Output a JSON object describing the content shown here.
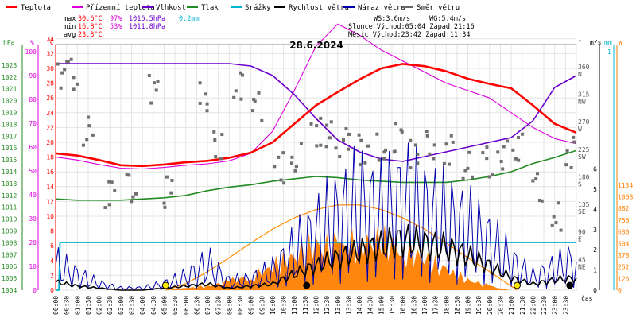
{
  "chart_data": {
    "type": "line",
    "title": "28.6.2024",
    "xlabel": "čas",
    "x_ticks": [
      "00:00",
      "00:30",
      "01:00",
      "01:30",
      "02:00",
      "02:30",
      "03:00",
      "03:30",
      "04:00",
      "04:30",
      "05:00",
      "05:30",
      "06:00",
      "06:30",
      "07:00",
      "07:30",
      "08:00",
      "08:30",
      "09:00",
      "09:30",
      "10:00",
      "10:30",
      "11:00",
      "11:30",
      "12:00",
      "12:30",
      "13:00",
      "13:30",
      "14:00",
      "14:30",
      "15:00",
      "15:30",
      "16:00",
      "16:30",
      "17:00",
      "17:30",
      "18:00",
      "18:30",
      "19:00",
      "19:30",
      "20:00",
      "20:30",
      "21:00",
      "21:30",
      "22:00",
      "22:30",
      "23:00",
      "23:30"
    ],
    "axes": {
      "hpa": {
        "label": "hPa",
        "ticks": [
          "1004",
          "1005",
          "1006",
          "1007",
          "1008",
          "1009",
          "1010",
          "1011",
          "1012",
          "1013",
          "1014",
          "1015",
          "1016",
          "1017",
          "1018",
          "1019",
          "1020",
          "1021",
          "1022",
          "1023"
        ]
      },
      "percent": {
        "label": "%",
        "ticks": [
          "0",
          "10",
          "20",
          "30",
          "40",
          "50",
          "60",
          "70",
          "80",
          "90",
          "100"
        ]
      },
      "temperature": {
        "label": "°C",
        "ticks": [
          "0",
          "2",
          "4",
          "6",
          "8",
          "10",
          "12",
          "14",
          "16",
          "18",
          "20",
          "22",
          "24",
          "26",
          "28",
          "30",
          "32",
          "34"
        ]
      },
      "direction": {
        "label": "°",
        "ticks": [
          {
            "deg": "45",
            "dir": "NE"
          },
          {
            "deg": "90",
            "dir": "E"
          },
          {
            "deg": "135",
            "dir": "SE"
          },
          {
            "deg": "180",
            "dir": "S"
          },
          {
            "deg": "225",
            "dir": "SW"
          },
          {
            "deg": "270",
            "dir": "W"
          },
          {
            "deg": "315",
            "dir": "NW"
          },
          {
            "deg": "360",
            "dir": "N"
          }
        ]
      },
      "wind": {
        "label": "m/s",
        "ticks": [
          "0",
          "1",
          "2",
          "3",
          "4",
          "5",
          "6"
        ]
      },
      "rain": {
        "label": "mm",
        "ticks": [
          "1"
        ]
      },
      "solar": {
        "label": "W",
        "ticks": [
          "0",
          "126",
          "252",
          "378",
          "504",
          "630",
          "756",
          "882",
          "1008",
          "1134"
        ]
      }
    },
    "legend": [
      {
        "name": "Teplota",
        "color": "#ff0000"
      },
      {
        "name": "Přízemní teplota",
        "color": "#dd00dd"
      },
      {
        "name": "Vlhkost",
        "color": "#6a00cc"
      },
      {
        "name": "Tlak",
        "color": "#228b22"
      },
      {
        "name": "Srážky",
        "color": "#00b4d0"
      },
      {
        "name": "Rychlost větru",
        "color": "#000000"
      },
      {
        "name": "Náraz větru",
        "color": "#0000aa"
      },
      {
        "name": "Směr větru",
        "color": "#666666"
      }
    ],
    "summary": {
      "max_label": "max",
      "max_temp": "30.6°C",
      "max_hum": "97%",
      "max_press": "1016.5hPa",
      "rain": "0.2mm",
      "min_label": "min",
      "min_temp": "16.8°C",
      "min_hum": "53%",
      "min_press": "1011.8hPa",
      "avg_label": "avg",
      "avg_temp": "23.3°C",
      "ws": "WS:3.6m/s",
      "wg": "WG:5.4m/s",
      "sun": "Slunce Východ:05:04  Západ:21:16",
      "moon": "Měsíc  Východ:23:42  Západ:11:34"
    },
    "series": [
      {
        "name": "Teplota",
        "axis": "temperature",
        "x": [
          0,
          1,
          2,
          3,
          4,
          5,
          6,
          7,
          8,
          9,
          10,
          11,
          12,
          13,
          14,
          15,
          16,
          17,
          18,
          19,
          20,
          21,
          22,
          23,
          24
        ],
        "values": [
          18.5,
          18.2,
          17.6,
          16.9,
          16.8,
          17.0,
          17.3,
          17.5,
          17.9,
          18.6,
          20.0,
          22.5,
          25.0,
          26.8,
          28.5,
          30.0,
          30.6,
          30.3,
          29.6,
          28.6,
          27.9,
          27.3,
          25.0,
          22.5,
          21.3
        ]
      },
      {
        "name": "Přízemní teplota",
        "axis": "temperature",
        "x": [
          0,
          1,
          2,
          3,
          4,
          5,
          6,
          7,
          8,
          9,
          10,
          11,
          12,
          13,
          14,
          15,
          16,
          17,
          18,
          19,
          20,
          21,
          22,
          23,
          24
        ],
        "values": [
          18.0,
          17.6,
          17.0,
          16.5,
          16.4,
          16.6,
          16.9,
          17.1,
          17.5,
          18.5,
          21.5,
          27.0,
          33.0,
          36.0,
          34.5,
          32.5,
          31.0,
          29.5,
          28.0,
          27.0,
          26.0,
          24.0,
          22.0,
          20.5,
          19.8
        ]
      },
      {
        "name": "Vlhkost",
        "axis": "percent",
        "x": [
          0,
          1,
          2,
          3,
          4,
          5,
          6,
          7,
          8,
          9,
          10,
          11,
          12,
          13,
          14,
          15,
          16,
          17,
          18,
          19,
          20,
          21,
          22,
          23,
          24
        ],
        "values": [
          95,
          95,
          95,
          95,
          95,
          95,
          95,
          95,
          95,
          94,
          90,
          82,
          72,
          63,
          58,
          55,
          54,
          56,
          58,
          60,
          62,
          64,
          71,
          85,
          90
        ]
      },
      {
        "name": "Tlak",
        "axis": "hpa",
        "x": [
          0,
          1,
          2,
          3,
          4,
          5,
          6,
          7,
          8,
          9,
          10,
          11,
          12,
          13,
          14,
          15,
          16,
          17,
          18,
          19,
          20,
          21,
          22,
          23,
          24
        ],
        "values": [
          1011.7,
          1011.6,
          1011.6,
          1011.6,
          1011.7,
          1011.8,
          1012.0,
          1012.4,
          1012.7,
          1012.9,
          1013.2,
          1013.4,
          1013.6,
          1013.5,
          1013.3,
          1013.2,
          1013.1,
          1013.1,
          1013.1,
          1013.3,
          1013.6,
          1014.0,
          1014.7,
          1015.2,
          1015.8
        ]
      },
      {
        "name": "Srážky",
        "axis": "rain",
        "x": [
          0,
          0.15,
          0.2,
          24
        ],
        "values": [
          0,
          0,
          0.2,
          0.2
        ]
      },
      {
        "name": "Rychlost větru",
        "axis": "wind",
        "x": [
          0,
          1,
          2,
          3,
          4,
          5,
          6,
          7,
          8,
          9,
          10,
          11,
          12,
          13,
          14,
          15,
          16,
          17,
          18,
          19,
          20,
          21,
          22,
          23,
          24
        ],
        "values": [
          0.4,
          0.2,
          0.1,
          0.0,
          0.0,
          0.1,
          0.2,
          0.3,
          0.1,
          0.2,
          0.3,
          0.8,
          1.2,
          1.6,
          1.9,
          2.2,
          2.5,
          2.3,
          2.1,
          1.7,
          1.2,
          0.6,
          0.3,
          0.5,
          0.6
        ]
      },
      {
        "name": "Náraz větru",
        "axis": "wind",
        "x": [
          0,
          1,
          2,
          3,
          4,
          5,
          6,
          7,
          8,
          9,
          10,
          11,
          12,
          13,
          14,
          15,
          16,
          17,
          18,
          19,
          20,
          21,
          22,
          23,
          24
        ],
        "values": [
          1.2,
          0.7,
          0.3,
          0.1,
          0.1,
          0.3,
          0.6,
          1.2,
          0.4,
          0.5,
          0.9,
          1.8,
          2.6,
          3.3,
          3.9,
          3.5,
          4.1,
          3.6,
          3.2,
          2.8,
          2.2,
          1.3,
          0.6,
          1.0,
          1.4
        ]
      },
      {
        "name": "Solar",
        "axis": "solar",
        "x": [
          5,
          6,
          7,
          8,
          9,
          10,
          11,
          12,
          13,
          14,
          15,
          16,
          17,
          18,
          19,
          20,
          21
        ],
        "values": [
          0,
          20,
          45,
          90,
          150,
          240,
          380,
          460,
          430,
          520,
          500,
          450,
          330,
          200,
          110,
          40,
          0
        ]
      },
      {
        "name": "Solar clear-sky",
        "axis": "solar",
        "x": [
          5.07,
          6,
          7,
          8,
          9,
          10,
          11,
          12,
          13,
          14,
          15,
          16,
          17,
          18,
          19,
          20,
          21.27
        ],
        "values": [
          0,
          70,
          200,
          350,
          510,
          660,
          780,
          870,
          920,
          920,
          870,
          780,
          660,
          510,
          350,
          200,
          0
        ]
      },
      {
        "name": "Směr větru",
        "axis": "direction",
        "x": [
          0.3,
          0.8,
          1.5,
          2.5,
          3.5,
          4.5,
          5.2,
          6.8,
          7.5,
          8.4,
          9.3,
          10.3,
          11.1,
          12.0,
          12.7,
          13.3,
          14.2,
          15.0,
          15.8,
          16.5,
          17.3,
          18.1,
          19.0,
          19.9,
          20.6,
          21.3,
          22.2,
          23.1,
          23.7
        ],
        "values": [
          355,
          352,
          260,
          160,
          165,
          330,
          160,
          315,
          240,
          330,
          300,
          200,
          215,
          260,
          250,
          240,
          230,
          230,
          250,
          220,
          235,
          230,
          200,
          210,
          220,
          230,
          170,
          118,
          225
        ]
      }
    ],
    "markers": [
      {
        "name": "sunrise",
        "x": 5.07
      },
      {
        "name": "sunset",
        "x": 21.27
      },
      {
        "name": "moonset",
        "x": 11.57
      },
      {
        "name": "moonrise",
        "x": 23.7
      }
    ]
  }
}
